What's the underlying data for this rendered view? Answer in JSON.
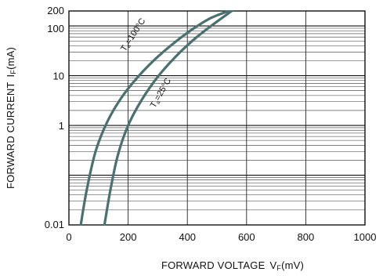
{
  "chart_data": {
    "type": "line",
    "xlabel": "FORWARD VOLTAGE",
    "xlabel_symbol": "V",
    "xlabel_subscript": "F",
    "xlabel_unit": "(mV)",
    "ylabel": "FORWARD CURRENT",
    "ylabel_symbol": "I",
    "ylabel_subscript": "F",
    "ylabel_unit": "(mA)",
    "xlim": [
      0,
      1000
    ],
    "ylim": [
      0.01,
      200
    ],
    "yscale": "log",
    "grid": true,
    "x_ticks": [
      "0",
      "200",
      "400",
      "600",
      "800",
      "1000"
    ],
    "x_tick_values": [
      0,
      200,
      400,
      600,
      800,
      1000
    ],
    "y_ticks": [
      "0.01",
      "1",
      "10",
      "100",
      "200"
    ],
    "y_tick_values": [
      0.01,
      1,
      10,
      100,
      200
    ],
    "line_color": "#4a7070",
    "series": [
      {
        "name": "Ta=100°C",
        "label_main": "T",
        "label_sub": "a",
        "label_rest": "=100°C",
        "x": [
          40,
          60,
          90,
          130,
          180,
          240,
          300,
          360,
          420,
          480,
          540
        ],
        "y": [
          0.01,
          0.05,
          0.3,
          1.2,
          3.8,
          10.5,
          24,
          48,
          88,
          145,
          200
        ]
      },
      {
        "name": "Ta=25°C",
        "label_main": "T",
        "label_sub": "a",
        "label_rest": "=25°C",
        "x": [
          120,
          140,
          165,
          200,
          245,
          300,
          360,
          420,
          480,
          550
        ],
        "y": [
          0.01,
          0.05,
          0.25,
          1.0,
          3.2,
          9.5,
          24,
          52,
          100,
          200
        ]
      }
    ]
  }
}
